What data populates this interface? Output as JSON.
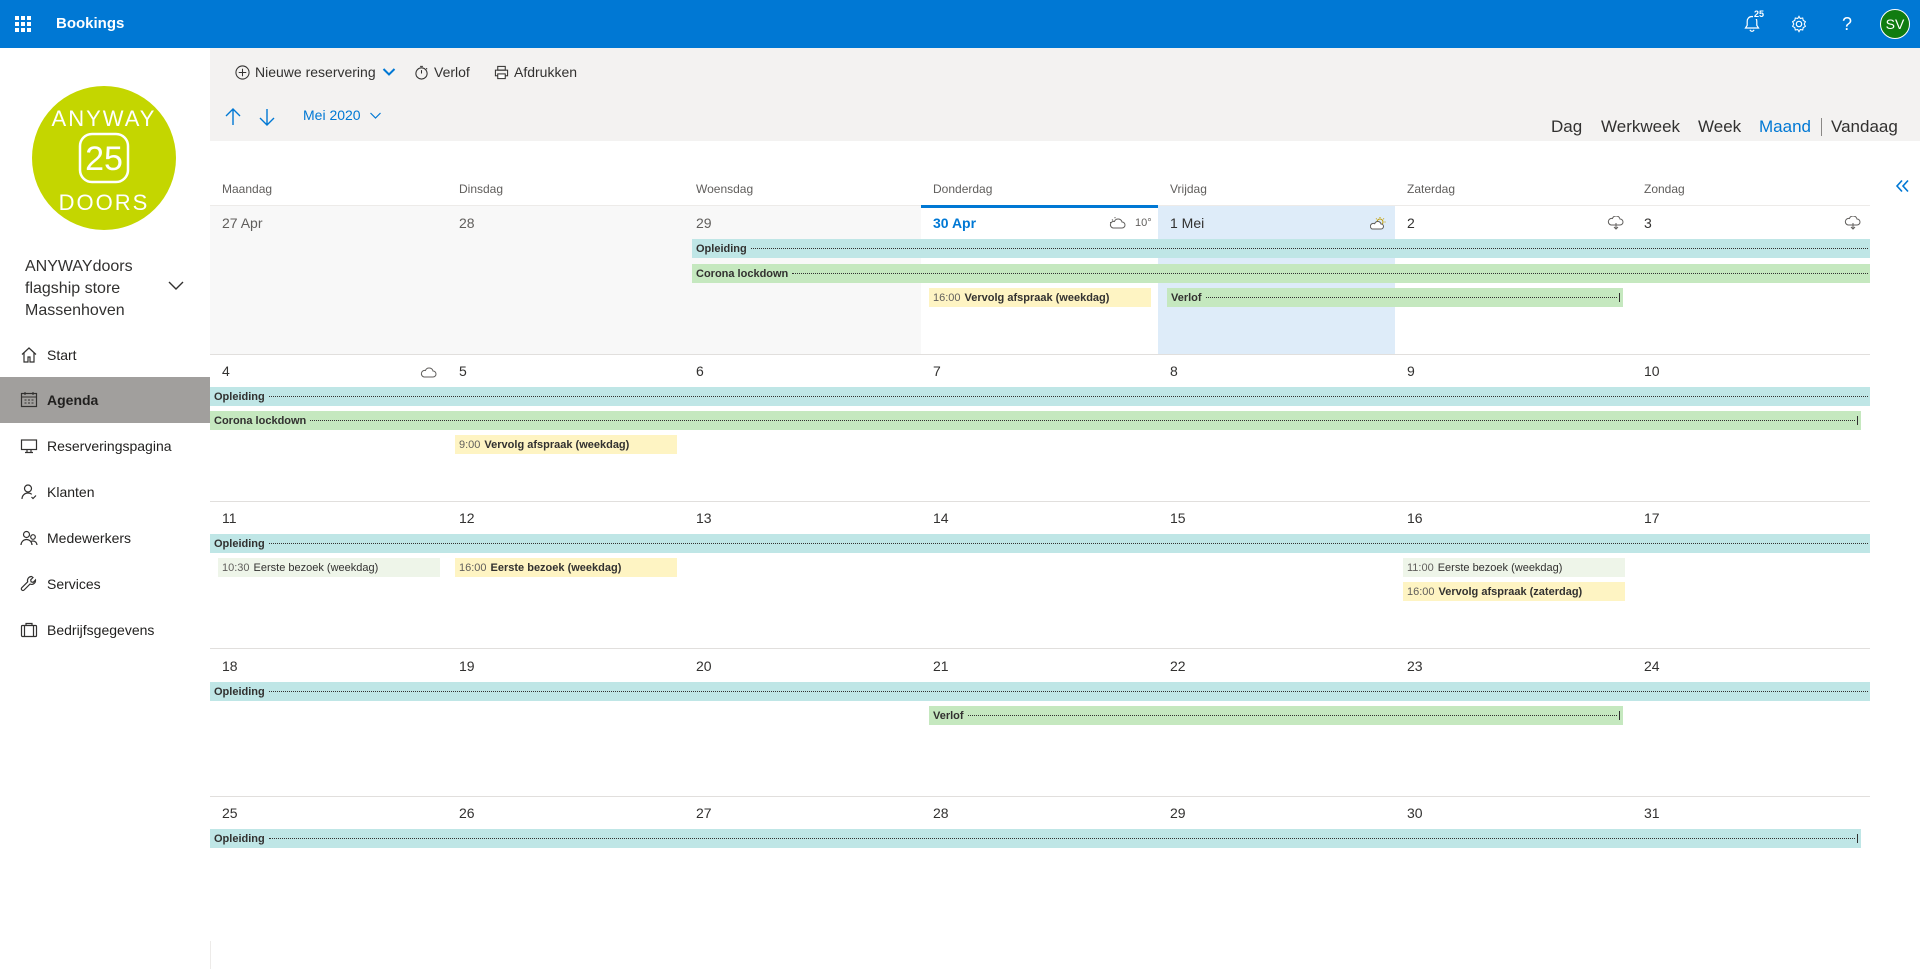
{
  "app": {
    "title": "Bookings",
    "notifications": "25",
    "avatar": "SV"
  },
  "sidebar": {
    "logo": {
      "top": "ANYWAY",
      "number": "25",
      "bottom": "DOORS"
    },
    "store": {
      "line1": "ANYWAYdoors",
      "line2": "flagship store",
      "line3": "Massenhoven"
    },
    "nav": [
      {
        "label": "Start",
        "icon": "home-icon"
      },
      {
        "label": "Agenda",
        "icon": "calendar-icon"
      },
      {
        "label": "Reserveringspagina",
        "icon": "monitor-icon"
      },
      {
        "label": "Klanten",
        "icon": "customer-icon"
      },
      {
        "label": "Medewerkers",
        "icon": "staff-icon"
      },
      {
        "label": "Services",
        "icon": "wrench-icon"
      },
      {
        "label": "Bedrijfsgegevens",
        "icon": "briefcase-icon"
      }
    ]
  },
  "toolbar": {
    "new_booking": "Nieuwe reservering",
    "timeoff": "Verlof",
    "print": "Afdrukken"
  },
  "nav": {
    "month": "Mei 2020"
  },
  "views": {
    "day": "Dag",
    "workweek": "Werkweek",
    "week": "Week",
    "month": "Maand",
    "today": "Vandaag"
  },
  "calendar": {
    "weekdays": [
      "Maandag",
      "Dinsdag",
      "Woensdag",
      "Donderdag",
      "Vrijdag",
      "Zaterdag",
      "Zondag"
    ],
    "weeks": [
      [
        "27 Apr",
        "28",
        "29",
        "30 Apr",
        "1 Mei",
        "2",
        "3"
      ],
      [
        "4",
        "5",
        "6",
        "7",
        "8",
        "9",
        "10"
      ],
      [
        "11",
        "12",
        "13",
        "14",
        "15",
        "16",
        "17"
      ],
      [
        "18",
        "19",
        "20",
        "21",
        "22",
        "23",
        "24"
      ],
      [
        "25",
        "26",
        "27",
        "28",
        "29",
        "30",
        "31"
      ]
    ],
    "temperature": "10°",
    "all_day": {
      "opleiding": "Opleiding",
      "corona": "Corona lockdown",
      "verlof": "Verlof"
    },
    "appointments": {
      "a1": {
        "time": "16:00",
        "name": "Vervolg afspraak (weekdag)"
      },
      "a2": {
        "time": "9:00",
        "name": "Vervolg afspraak (weekdag)"
      },
      "a3": {
        "time": "10:30",
        "name": "Eerste bezoek (weekdag)"
      },
      "a4": {
        "time": "16:00",
        "name": "Eerste bezoek (weekdag)"
      },
      "a5": {
        "time": "11:00",
        "name": "Eerste bezoek (weekdag)"
      },
      "a6": {
        "time": "16:00",
        "name": "Vervolg afspraak (zaterdag)"
      }
    }
  },
  "colors": {
    "brand": "#0078d4",
    "logo": "#c4d600",
    "teal_bar": "#bfe6e6",
    "green_bar": "#c5e8bf",
    "appt_yellow": "#fef4c3"
  }
}
